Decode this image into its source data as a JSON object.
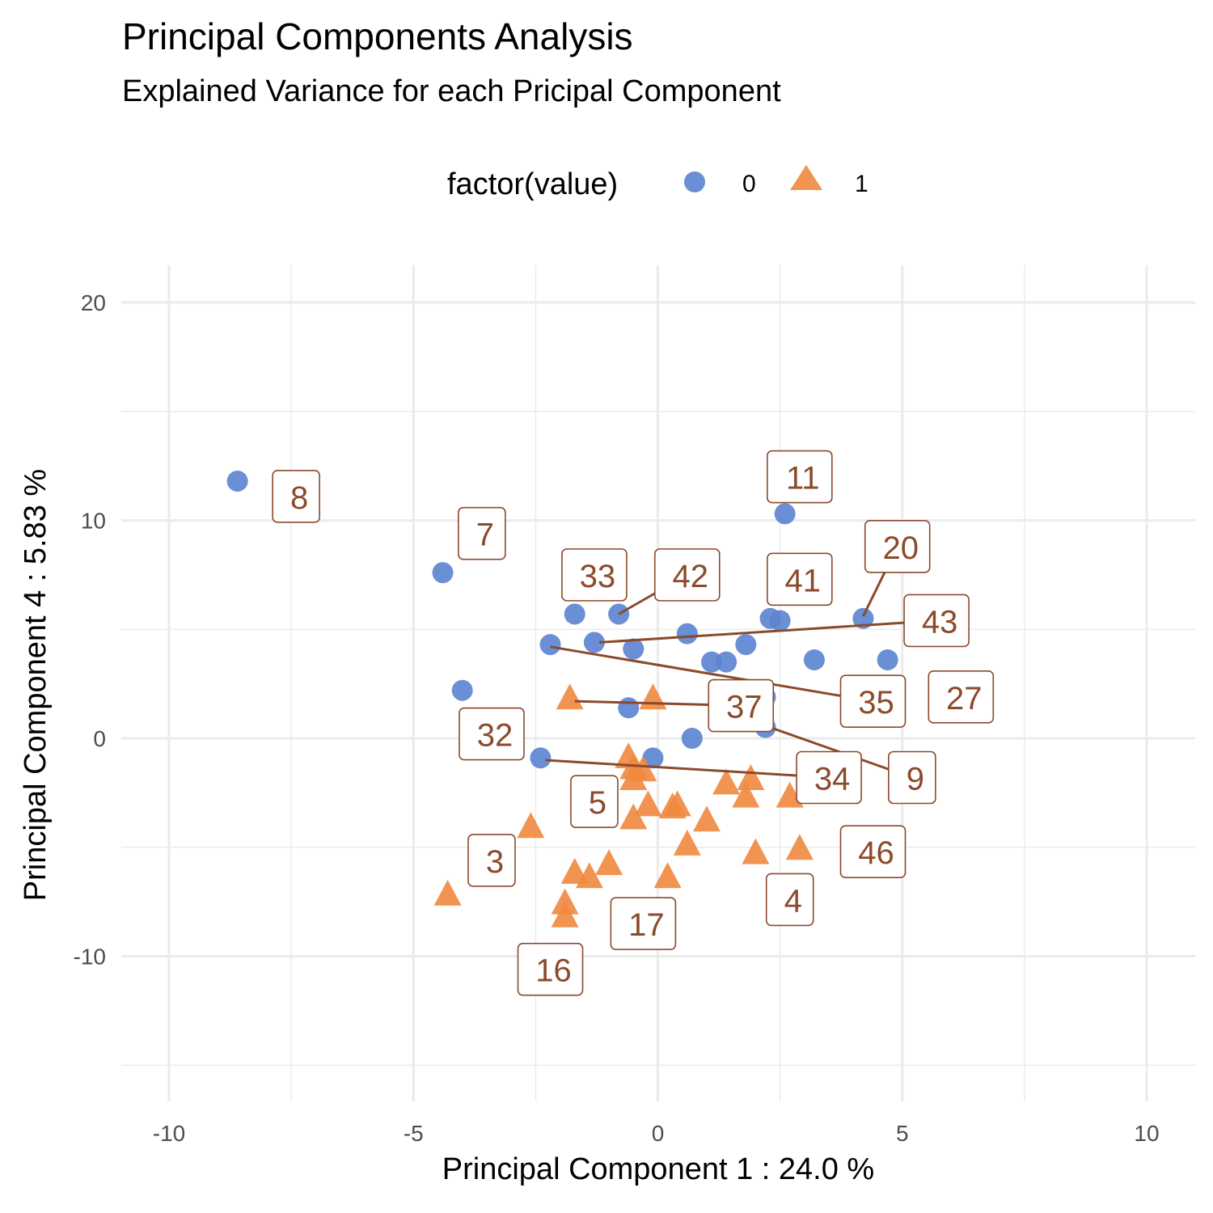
{
  "title": "Principal Components Analysis",
  "subtitle": "Explained Variance for each Pricipal Component",
  "colors": {
    "group0": "#5B83CF",
    "group1": "#F0883E",
    "label": "#8B4A2B",
    "grid": "#EBEBEB"
  },
  "chart_data": {
    "type": "scatter",
    "xlabel": "Principal Component 1 : 24.0 %",
    "ylabel": "Principal Component 4 : 5.83 %",
    "xlim": [
      -11,
      11
    ],
    "ylim": [
      -16.5,
      22
    ],
    "x_ticks": [
      -10,
      -5,
      0,
      5,
      10
    ],
    "y_ticks": [
      -10,
      0,
      10,
      20
    ],
    "x_tick_labels": [
      "-10",
      "-5",
      "0",
      "5",
      "10"
    ],
    "y_tick_labels": [
      "-10",
      "0",
      "10",
      "20"
    ],
    "grid": true,
    "legend": {
      "title": "factor(value)",
      "position": "top",
      "entries": [
        {
          "label": "0",
          "shape": "circle"
        },
        {
          "label": "1",
          "shape": "triangle"
        }
      ]
    },
    "series": [
      {
        "name": "0",
        "shape": "circle",
        "points": [
          [
            -8.6,
            11.8
          ],
          [
            -4.4,
            7.6
          ],
          [
            -4.0,
            2.2
          ],
          [
            2.6,
            10.3
          ],
          [
            -1.7,
            5.7
          ],
          [
            -0.8,
            5.7
          ],
          [
            2.3,
            5.5
          ],
          [
            2.5,
            5.4
          ],
          [
            4.2,
            5.5
          ],
          [
            -2.2,
            4.3
          ],
          [
            -1.3,
            4.4
          ],
          [
            -0.5,
            4.1
          ],
          [
            0.6,
            4.8
          ],
          [
            1.8,
            4.3
          ],
          [
            1.1,
            3.5
          ],
          [
            1.4,
            3.5
          ],
          [
            3.2,
            3.6
          ],
          [
            4.7,
            3.6
          ],
          [
            2.2,
            1.9
          ],
          [
            -0.6,
            1.4
          ],
          [
            2.2,
            0.5
          ],
          [
            0.7,
            0.0
          ],
          [
            -2.4,
            -0.9
          ],
          [
            -0.1,
            -0.9
          ]
        ]
      },
      {
        "name": "1",
        "shape": "triangle",
        "points": [
          [
            -1.8,
            1.8
          ],
          [
            -0.1,
            1.8
          ],
          [
            -0.6,
            -0.9
          ],
          [
            -0.5,
            -1.4
          ],
          [
            -0.3,
            -1.5
          ],
          [
            -0.5,
            -1.9
          ],
          [
            1.4,
            -2.1
          ],
          [
            1.9,
            -1.9
          ],
          [
            1.8,
            -2.7
          ],
          [
            2.7,
            -2.7
          ],
          [
            -0.2,
            -3.1
          ],
          [
            0.3,
            -3.2
          ],
          [
            0.4,
            -3.1
          ],
          [
            -0.5,
            -3.7
          ],
          [
            1.0,
            -3.8
          ],
          [
            -2.6,
            -4.1
          ],
          [
            0.6,
            -4.9
          ],
          [
            2.0,
            -5.3
          ],
          [
            2.9,
            -5.1
          ],
          [
            -1.7,
            -6.2
          ],
          [
            -1.4,
            -6.4
          ],
          [
            -1.0,
            -5.8
          ],
          [
            0.2,
            -6.4
          ],
          [
            -4.3,
            -7.2
          ],
          [
            -1.9,
            -7.6
          ],
          [
            -1.9,
            -8.2
          ]
        ]
      }
    ],
    "labels": [
      {
        "text": "8",
        "pos": [
          -7.4,
          11.1
        ],
        "from": null
      },
      {
        "text": "7",
        "pos": [
          -3.6,
          9.4
        ],
        "from": null
      },
      {
        "text": "11",
        "pos": [
          2.9,
          12.0
        ],
        "from": null
      },
      {
        "text": "20",
        "pos": [
          4.9,
          8.8
        ],
        "from": [
          4.2,
          5.6
        ]
      },
      {
        "text": "33",
        "pos": [
          -1.3,
          7.5
        ],
        "from": null
      },
      {
        "text": "42",
        "pos": [
          0.6,
          7.5
        ],
        "from": [
          -0.8,
          5.7
        ]
      },
      {
        "text": "41",
        "pos": [
          2.9,
          7.3
        ],
        "from": null
      },
      {
        "text": "43",
        "pos": [
          5.7,
          5.4
        ],
        "from": [
          -1.2,
          4.4
        ]
      },
      {
        "text": "35",
        "pos": [
          4.4,
          1.7
        ],
        "from": [
          -2.2,
          4.2
        ]
      },
      {
        "text": "27",
        "pos": [
          6.2,
          1.9
        ],
        "from": null
      },
      {
        "text": "37",
        "pos": [
          1.7,
          1.5
        ],
        "from": [
          -1.7,
          1.7
        ]
      },
      {
        "text": "32",
        "pos": [
          -3.4,
          0.2
        ],
        "from": null
      },
      {
        "text": "34",
        "pos": [
          3.5,
          -1.8
        ],
        "from": [
          -2.3,
          -1.0
        ]
      },
      {
        "text": "9",
        "pos": [
          5.2,
          -1.8
        ],
        "from": [
          2.3,
          0.5
        ]
      },
      {
        "text": "5",
        "pos": [
          -1.3,
          -2.9
        ],
        "from": null
      },
      {
        "text": "46",
        "pos": [
          4.4,
          -5.2
        ],
        "from": null
      },
      {
        "text": "3",
        "pos": [
          -3.4,
          -5.6
        ],
        "from": null
      },
      {
        "text": "4",
        "pos": [
          2.7,
          -7.4
        ],
        "from": null
      },
      {
        "text": "17",
        "pos": [
          -0.3,
          -8.5
        ],
        "from": null
      },
      {
        "text": "16",
        "pos": [
          -2.2,
          -10.6
        ],
        "from": null
      }
    ]
  }
}
